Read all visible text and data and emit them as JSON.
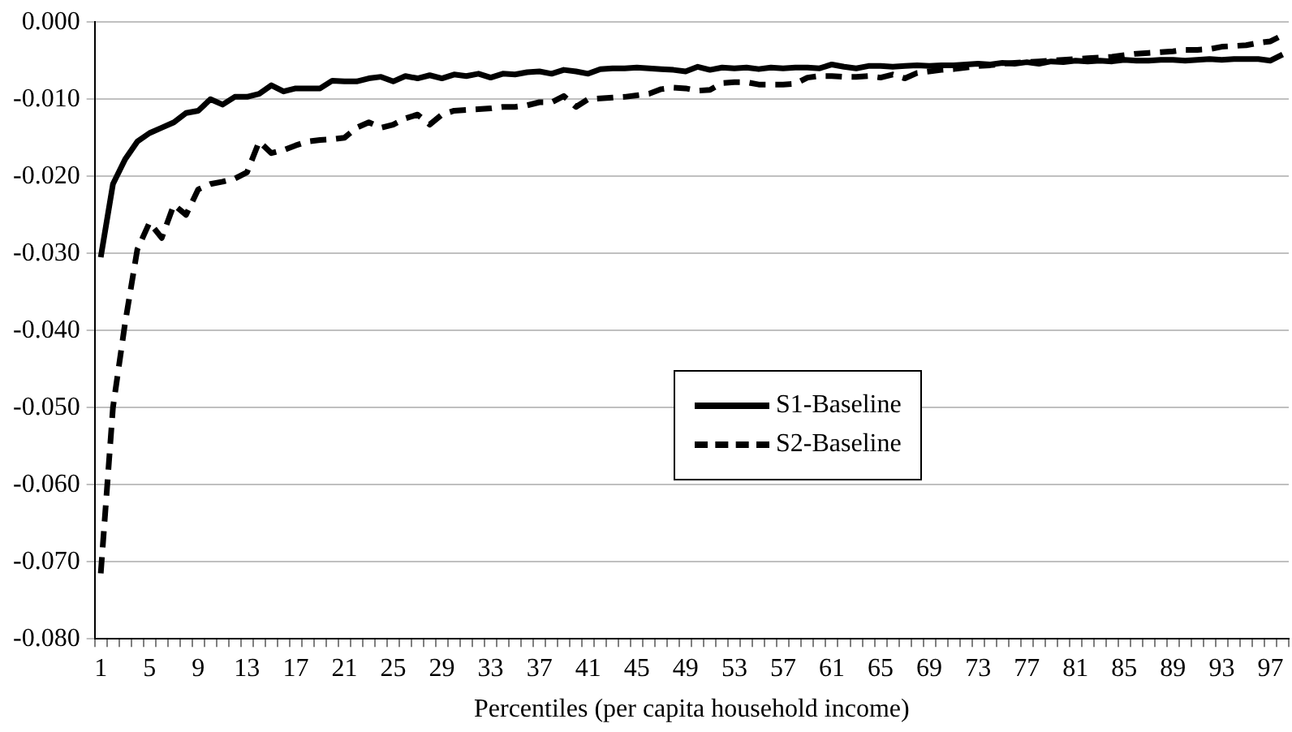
{
  "chart_data": {
    "type": "line",
    "xlabel": "Percentiles (per capita household income)",
    "categories": [
      "1",
      null,
      null,
      null,
      "5",
      null,
      null,
      null,
      "9",
      null,
      null,
      null,
      "13",
      null,
      null,
      null,
      "17",
      null,
      null,
      null,
      "21",
      null,
      null,
      null,
      "25",
      null,
      null,
      null,
      "29",
      null,
      null,
      null,
      "33",
      null,
      null,
      null,
      "37",
      null,
      null,
      null,
      "41",
      null,
      null,
      null,
      "45",
      null,
      null,
      null,
      "49",
      null,
      null,
      null,
      "53",
      null,
      null,
      null,
      "57",
      null,
      null,
      null,
      "61",
      null,
      null,
      null,
      "65",
      null,
      null,
      null,
      "69",
      null,
      null,
      null,
      "73",
      null,
      null,
      null,
      "77",
      null,
      null,
      null,
      "81",
      null,
      null,
      null,
      "85",
      null,
      null,
      null,
      "89",
      null,
      null,
      null,
      "93",
      null,
      null,
      null,
      "97",
      null
    ],
    "series": [
      {
        "name": "S1-Baseline",
        "color": "#000000",
        "line_style": "solid",
        "values": [
          -0.0305,
          -0.021,
          -0.0178,
          -0.0155,
          -0.0144,
          -0.0137,
          -0.013,
          -0.0118,
          -0.0115,
          -0.01,
          -0.0107,
          -0.0097,
          -0.0097,
          -0.0093,
          -0.0082,
          -0.009,
          -0.0086,
          -0.0086,
          -0.0086,
          -0.0076,
          -0.0077,
          -0.0077,
          -0.0073,
          -0.0071,
          -0.0077,
          -0.007,
          -0.0073,
          -0.0069,
          -0.0073,
          -0.0068,
          -0.007,
          -0.0067,
          -0.0072,
          -0.0067,
          -0.0068,
          -0.0065,
          -0.0064,
          -0.0067,
          -0.0062,
          -0.0064,
          -0.0067,
          -0.0061,
          -0.006,
          -0.006,
          -0.0059,
          -0.006,
          -0.0061,
          -0.0062,
          -0.0064,
          -0.0058,
          -0.0062,
          -0.0059,
          -0.006,
          -0.0059,
          -0.0061,
          -0.0059,
          -0.006,
          -0.0059,
          -0.0059,
          -0.006,
          -0.0055,
          -0.0058,
          -0.006,
          -0.0057,
          -0.0057,
          -0.0058,
          -0.0057,
          -0.0056,
          -0.0057,
          -0.0056,
          -0.0056,
          -0.0055,
          -0.0054,
          -0.0055,
          -0.0053,
          -0.0054,
          -0.0052,
          -0.0054,
          -0.0051,
          -0.0052,
          -0.005,
          -0.0051,
          -0.005,
          -0.0051,
          -0.0049,
          -0.005,
          -0.005,
          -0.0049,
          -0.0049,
          -0.005,
          -0.0049,
          -0.0048,
          -0.0049,
          -0.0048,
          -0.0048,
          -0.0048,
          -0.005,
          -0.0042
        ]
      },
      {
        "name": "S2-Baseline",
        "color": "#000000",
        "line_style": "dashed",
        "values": [
          -0.0715,
          -0.05,
          -0.039,
          -0.0295,
          -0.026,
          -0.028,
          -0.0237,
          -0.025,
          -0.0217,
          -0.021,
          -0.0207,
          -0.0203,
          -0.0195,
          -0.0155,
          -0.017,
          -0.0166,
          -0.016,
          -0.0155,
          -0.0153,
          -0.0152,
          -0.015,
          -0.0137,
          -0.013,
          -0.0137,
          -0.0133,
          -0.0125,
          -0.012,
          -0.0133,
          -0.012,
          -0.0115,
          -0.0114,
          -0.0113,
          -0.0112,
          -0.011,
          -0.011,
          -0.0108,
          -0.0104,
          -0.0104,
          -0.0096,
          -0.011,
          -0.01,
          -0.0099,
          -0.0098,
          -0.0097,
          -0.0095,
          -0.0093,
          -0.0087,
          -0.0085,
          -0.0086,
          -0.0089,
          -0.0088,
          -0.0079,
          -0.0078,
          -0.0078,
          -0.0081,
          -0.0081,
          -0.0081,
          -0.008,
          -0.0072,
          -0.007,
          -0.007,
          -0.0071,
          -0.0071,
          -0.007,
          -0.0072,
          -0.0068,
          -0.0073,
          -0.0066,
          -0.0064,
          -0.0062,
          -0.0061,
          -0.0059,
          -0.0057,
          -0.0056,
          -0.0054,
          -0.0053,
          -0.0052,
          -0.0051,
          -0.005,
          -0.0049,
          -0.0048,
          -0.0047,
          -0.0046,
          -0.0045,
          -0.0043,
          -0.0041,
          -0.004,
          -0.0039,
          -0.0038,
          -0.0036,
          -0.0036,
          -0.0035,
          -0.0032,
          -0.0031,
          -0.003,
          -0.0027,
          -0.0025,
          -0.0017
        ]
      }
    ],
    "ylim": [
      -0.08,
      0
    ],
    "yticks": [
      {
        "value": -0.08,
        "label": "-0.080"
      },
      {
        "value": -0.07,
        "label": "-0.070"
      },
      {
        "value": -0.06,
        "label": "-0.060"
      },
      {
        "value": -0.05,
        "label": "-0.050"
      },
      {
        "value": -0.04,
        "label": "-0.040"
      },
      {
        "value": -0.03,
        "label": "-0.030"
      },
      {
        "value": -0.02,
        "label": "-0.020"
      },
      {
        "value": -0.01,
        "label": "-0.010"
      },
      {
        "value": 0,
        "label": "0.000"
      }
    ],
    "grid": "y",
    "legend": "center",
    "marker": "none"
  }
}
